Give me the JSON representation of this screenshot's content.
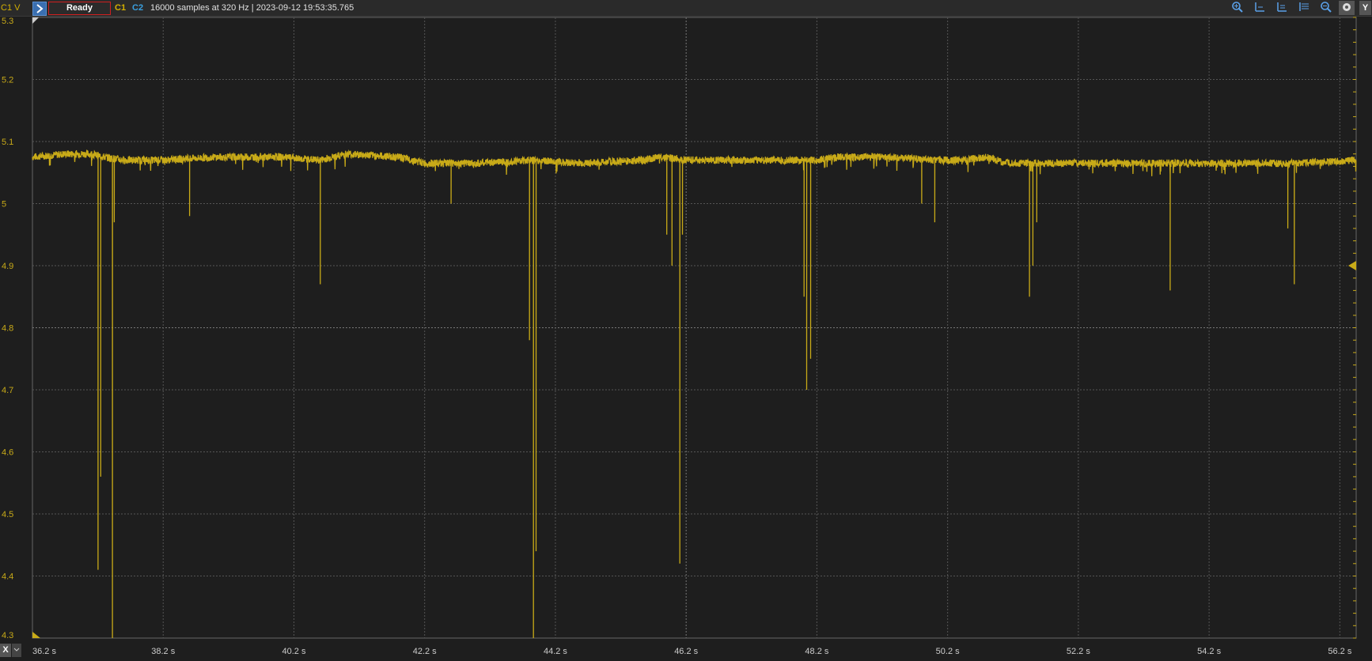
{
  "toolbar": {
    "channel_label": "C1 V",
    "status": "Ready",
    "c1_label": "C1",
    "c2_label": "C2",
    "info": "16000 samples at 320 Hz | 2023-09-12 19:53:35.765",
    "y_button": "Y",
    "x_button": "X"
  },
  "colors": {
    "trace": "#c8aa18",
    "background": "#1e1e1e",
    "grid": "#555555"
  },
  "tools": [
    "zoom-in-icon",
    "cursor-left-icon",
    "cursor-right-icon",
    "cursor-align-icon",
    "zoom-out-icon",
    "settings-icon"
  ],
  "chart_data": {
    "type": "line",
    "title": "",
    "xlabel": "",
    "ylabel": "V",
    "xlim": [
      36.2,
      56.45
    ],
    "ylim": [
      4.3,
      5.3
    ],
    "x_ticks": [
      "36.2 s",
      "38.2 s",
      "40.2 s",
      "42.2 s",
      "44.2 s",
      "46.2 s",
      "48.2 s",
      "50.2 s",
      "52.2 s",
      "54.2 s",
      "56.2 s"
    ],
    "x_tick_values": [
      36.2,
      38.2,
      40.2,
      42.2,
      44.2,
      46.2,
      48.2,
      50.2,
      52.2,
      54.2,
      56.2
    ],
    "y_ticks": [
      "5.3",
      "5.2",
      "5.1",
      "5",
      "4.9",
      "4.8",
      "4.7",
      "4.6",
      "4.5",
      "4.4",
      "4.3"
    ],
    "y_tick_values": [
      5.3,
      5.2,
      5.1,
      5.0,
      4.9,
      4.8,
      4.7,
      4.6,
      4.5,
      4.4,
      4.3
    ],
    "grid": true,
    "trigger_level": 4.9,
    "series": [
      {
        "baseline": [
          [
            36.2,
            5.075
          ],
          [
            36.7,
            5.08
          ],
          [
            37.1,
            5.08
          ],
          [
            37.3,
            5.075
          ],
          [
            37.6,
            5.07
          ],
          [
            38.2,
            5.07
          ],
          [
            39.0,
            5.075
          ],
          [
            40.0,
            5.075
          ],
          [
            40.6,
            5.07
          ],
          [
            41.0,
            5.08
          ],
          [
            41.8,
            5.075
          ],
          [
            42.2,
            5.065
          ],
          [
            43.0,
            5.065
          ],
          [
            43.8,
            5.07
          ],
          [
            44.6,
            5.065
          ],
          [
            45.5,
            5.07
          ],
          [
            45.8,
            5.075
          ],
          [
            46.3,
            5.07
          ],
          [
            47.2,
            5.07
          ],
          [
            48.2,
            5.07
          ],
          [
            48.5,
            5.075
          ],
          [
            49.3,
            5.075
          ],
          [
            50.0,
            5.07
          ],
          [
            50.4,
            5.07
          ],
          [
            50.8,
            5.075
          ],
          [
            51.1,
            5.065
          ],
          [
            51.6,
            5.065
          ],
          [
            52.5,
            5.065
          ],
          [
            53.5,
            5.065
          ],
          [
            54.5,
            5.065
          ],
          [
            55.5,
            5.065
          ],
          [
            56.45,
            5.07
          ]
        ],
        "dips": [
          [
            37.2,
            4.41
          ],
          [
            37.24,
            4.56
          ],
          [
            37.42,
            4.3
          ],
          [
            37.45,
            4.97
          ],
          [
            38.6,
            4.98
          ],
          [
            40.6,
            4.87
          ],
          [
            42.6,
            5.0
          ],
          [
            43.8,
            4.78
          ],
          [
            43.86,
            4.3
          ],
          [
            43.9,
            4.44
          ],
          [
            45.9,
            4.95
          ],
          [
            45.98,
            4.9
          ],
          [
            46.1,
            4.42
          ],
          [
            46.14,
            4.95
          ],
          [
            48.0,
            4.85
          ],
          [
            48.04,
            4.7
          ],
          [
            48.1,
            4.75
          ],
          [
            49.8,
            5.0
          ],
          [
            50.0,
            4.97
          ],
          [
            51.45,
            4.85
          ],
          [
            51.5,
            4.9
          ],
          [
            51.56,
            4.97
          ],
          [
            53.6,
            4.86
          ],
          [
            55.4,
            4.96
          ],
          [
            55.5,
            4.87
          ]
        ]
      }
    ]
  }
}
